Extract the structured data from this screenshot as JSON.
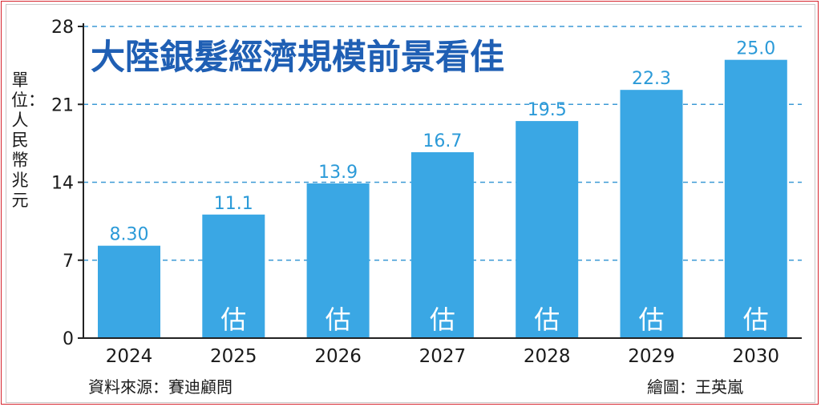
{
  "chart_data": {
    "type": "bar",
    "title": "大陸銀髮經濟規模前景看佳",
    "ylabel": "單位：人民幣兆元",
    "categories": [
      "2024",
      "2025",
      "2026",
      "2027",
      "2028",
      "2029",
      "2030"
    ],
    "values": [
      8.3,
      11.1,
      13.9,
      16.7,
      19.5,
      22.3,
      25.0
    ],
    "value_labels": [
      "8.30",
      "11.1",
      "13.9",
      "16.7",
      "19.5",
      "22.3",
      "25.0"
    ],
    "bar_notes": [
      "",
      "估",
      "估",
      "估",
      "估",
      "估",
      "估"
    ],
    "ylim": [
      0,
      28
    ],
    "yticks": [
      "0",
      "7",
      "14",
      "21",
      "28"
    ],
    "grid": true,
    "colors": {
      "bar": "#3aa7e4",
      "label": "#2b9ad8",
      "title": "#1f5fb4",
      "grid": "#3d9ad6"
    }
  },
  "footer": {
    "source": "資料來源：賽迪顧問",
    "credit": "繪圖：王英嵐"
  }
}
